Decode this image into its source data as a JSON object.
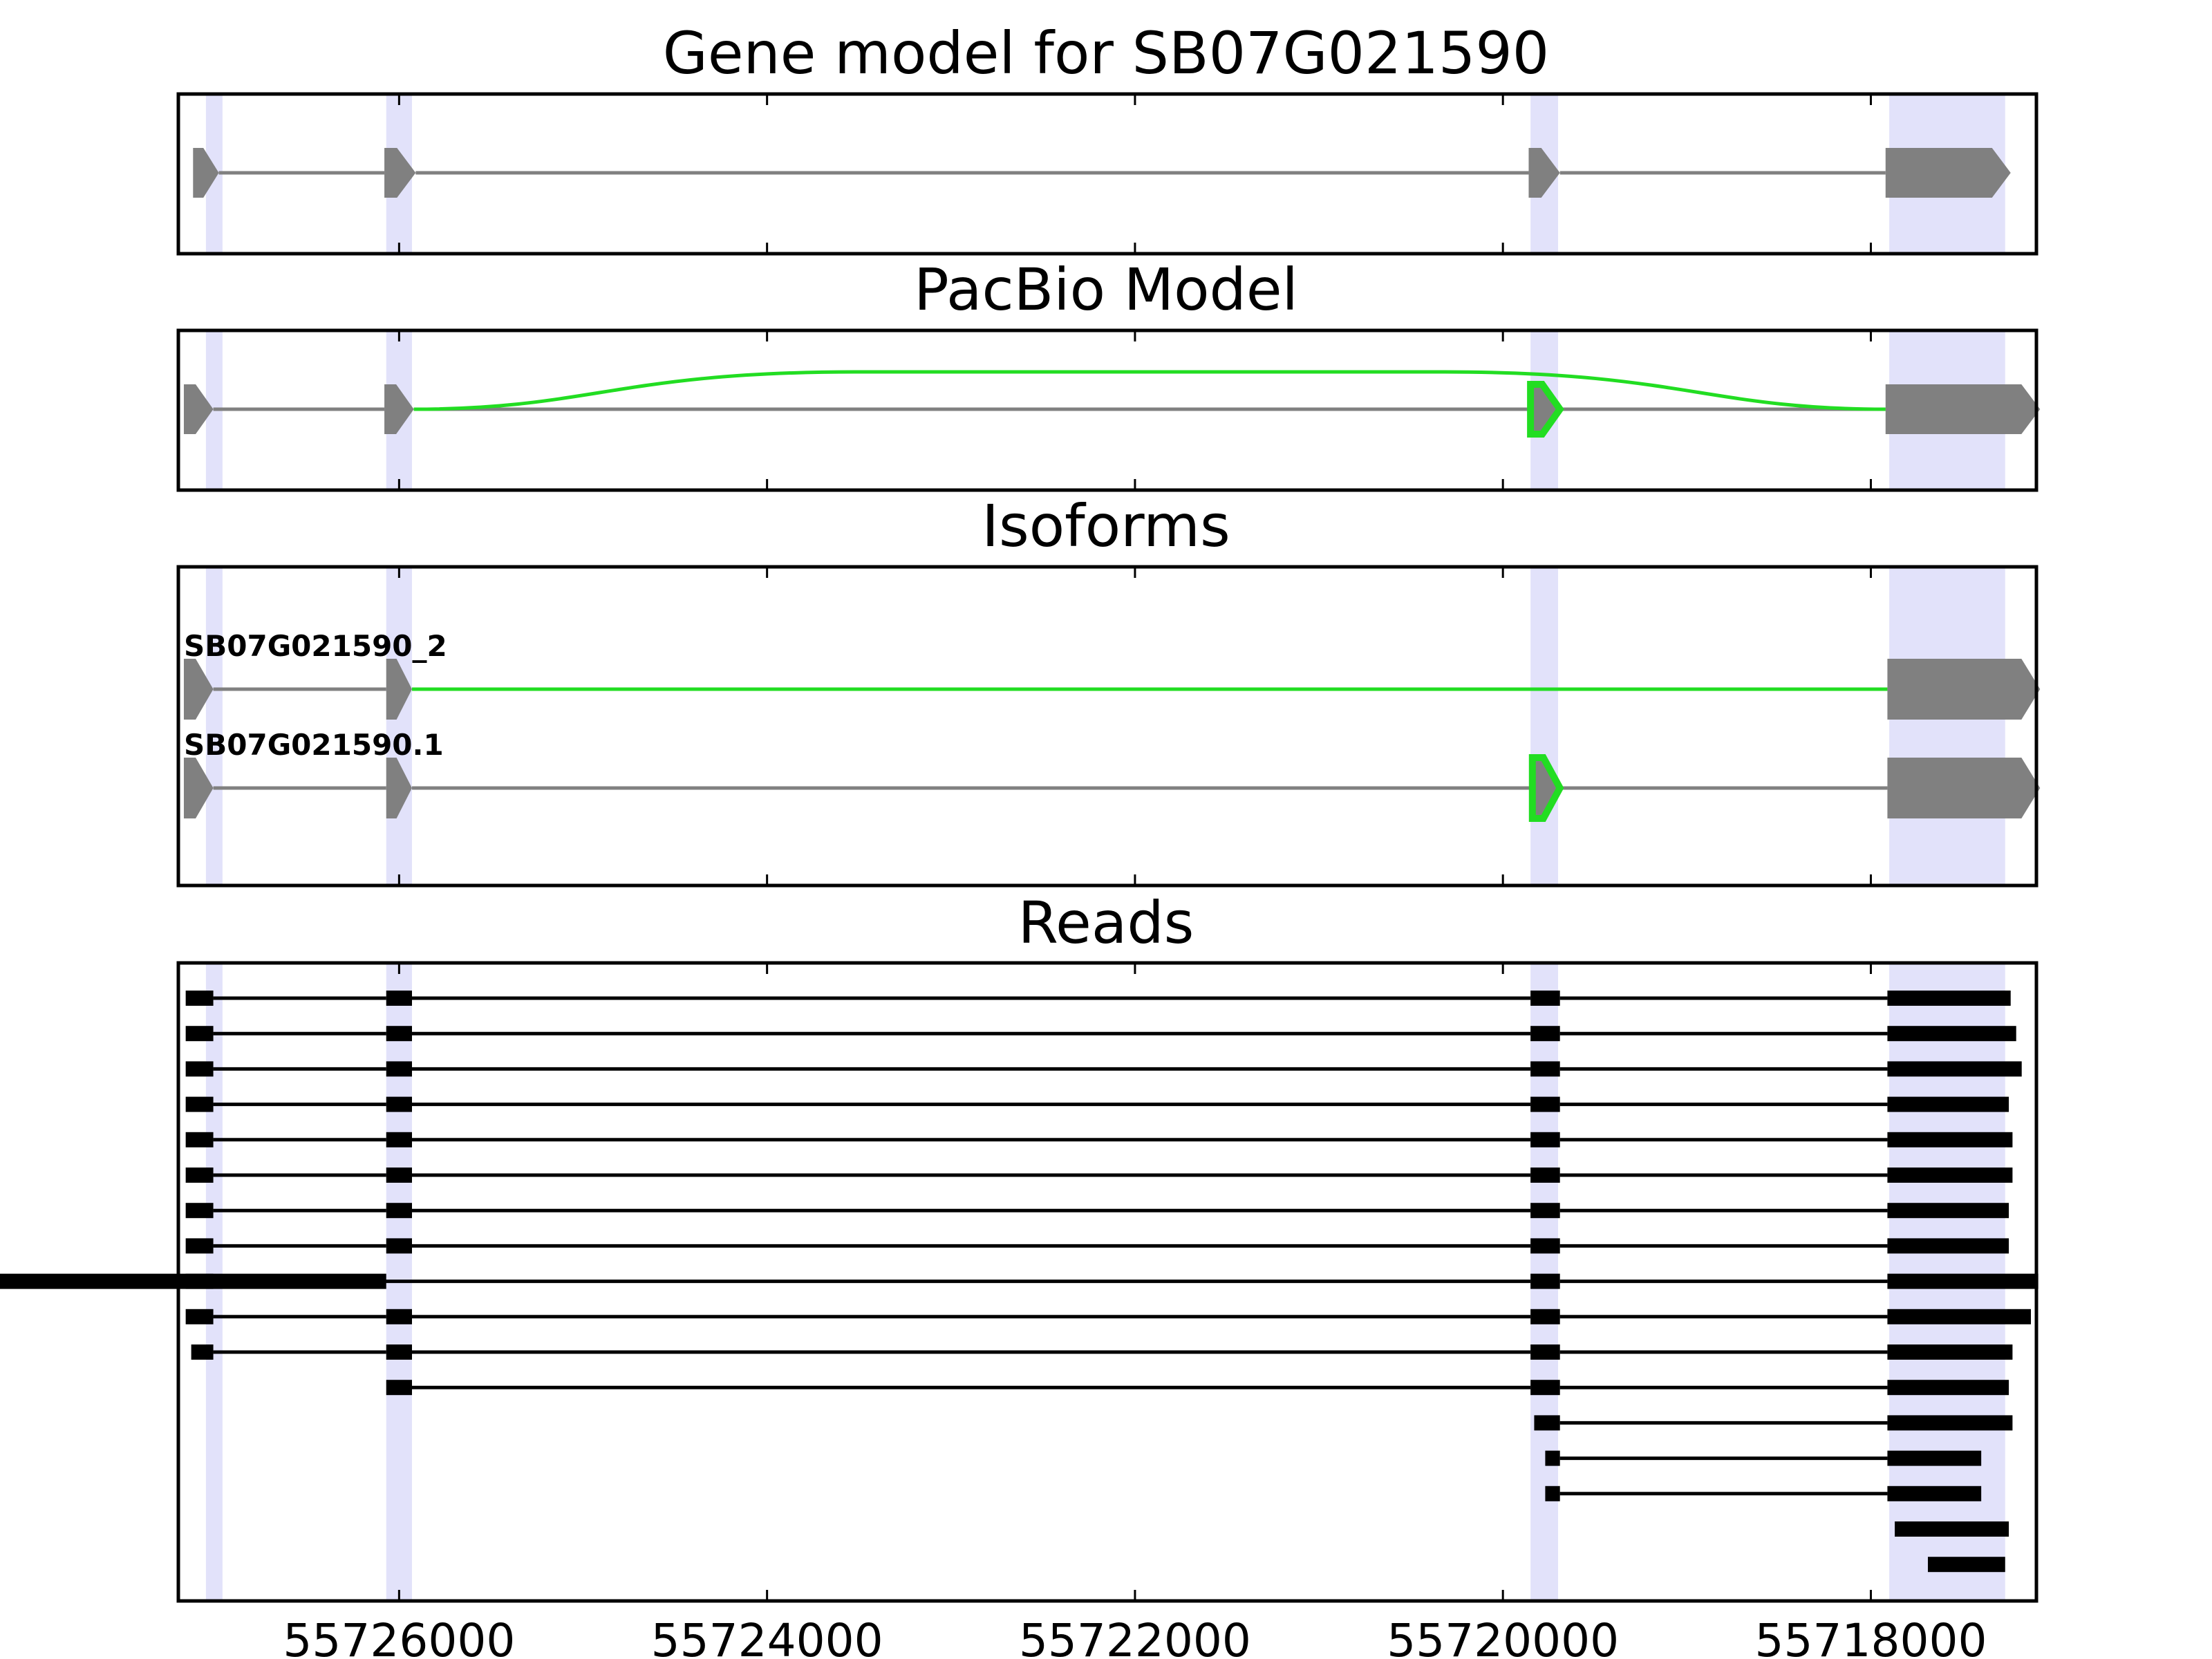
{
  "chart_data": {
    "type": "gene-track",
    "x_reversed": true,
    "xlim": [
      55727200,
      55717100
    ],
    "xticks": [
      55726000,
      55724000,
      55722000,
      55720000,
      55718000
    ],
    "xtick_labels": [
      "55726000",
      "55724000",
      "55722000",
      "55720000",
      "55718000"
    ],
    "exon_highlights": [
      [
        55727050,
        55726960
      ],
      [
        55726070,
        55725930
      ],
      [
        55719850,
        55719700
      ],
      [
        55717900,
        55717270
      ]
    ],
    "colors": {
      "highlight": "#e2e2fa",
      "feature": "#808080",
      "novel": "#22dd22",
      "read": "#000000",
      "frame": "#000000"
    },
    "panels": [
      {
        "title": "Gene model for SB07G021590",
        "rows": [
          {
            "label": "",
            "exons": [
              [
                55727120,
                55726980
              ],
              [
                55726080,
                55725910
              ],
              [
                55719860,
                55719690
              ],
              [
                55717920,
                55717240
              ]
            ],
            "novel_exons": [],
            "novel_junctions": []
          }
        ]
      },
      {
        "title": "PacBio Model",
        "rows": [
          {
            "label": "",
            "exons": [
              [
                55727170,
                55727010
              ],
              [
                55726080,
                55725920
              ],
              [
                55717920,
                55717080
              ]
            ],
            "novel_exons": [
              [
                55719850,
                55719690
              ]
            ],
            "novel_junctions": [
              [
                55725920,
                55717920
              ]
            ]
          }
        ]
      },
      {
        "title": "Isoforms",
        "rows": [
          {
            "label": "SB07G021590_2",
            "exons": [
              [
                55727170,
                55727010
              ],
              [
                55726070,
                55725930
              ],
              [
                55717910,
                55717080
              ]
            ],
            "novel_exons": [],
            "novel_junctions": [
              [
                55725930,
                55717910
              ]
            ]
          },
          {
            "label": "SB07G021590.1",
            "exons": [
              [
                55727170,
                55727010
              ],
              [
                55726070,
                55725930
              ],
              [
                55717910,
                55717080
              ]
            ],
            "novel_exons": [
              [
                55719840,
                55719690
              ]
            ],
            "novel_junctions": []
          }
        ]
      },
      {
        "title": "Reads",
        "rows": [
          {
            "exons": [
              [
                55727160,
                55727010
              ],
              [
                55726070,
                55725930
              ],
              [
                55719850,
                55719690
              ],
              [
                55717910,
                55717240
              ]
            ]
          },
          {
            "exons": [
              [
                55727160,
                55727010
              ],
              [
                55726070,
                55725930
              ],
              [
                55719850,
                55719690
              ],
              [
                55717910,
                55717210
              ]
            ]
          },
          {
            "exons": [
              [
                55727160,
                55727010
              ],
              [
                55726070,
                55725930
              ],
              [
                55719850,
                55719690
              ],
              [
                55717910,
                55717180
              ]
            ]
          },
          {
            "exons": [
              [
                55727160,
                55727010
              ],
              [
                55726070,
                55725930
              ],
              [
                55719850,
                55719690
              ],
              [
                55717910,
                55717250
              ]
            ]
          },
          {
            "exons": [
              [
                55727160,
                55727010
              ],
              [
                55726070,
                55725930
              ],
              [
                55719850,
                55719690
              ],
              [
                55717910,
                55717230
              ]
            ]
          },
          {
            "exons": [
              [
                55727160,
                55727010
              ],
              [
                55726070,
                55725930
              ],
              [
                55719850,
                55719690
              ],
              [
                55717910,
                55717230
              ]
            ]
          },
          {
            "exons": [
              [
                55727160,
                55727010
              ],
              [
                55726070,
                55725930
              ],
              [
                55719850,
                55719690
              ],
              [
                55717910,
                55717250
              ]
            ]
          },
          {
            "exons": [
              [
                55727160,
                55727010
              ],
              [
                55726070,
                55725930
              ],
              [
                55719850,
                55719690
              ],
              [
                55717910,
                55717250
              ]
            ]
          },
          {
            "exons": [
              [
                55727160,
                55727010
              ],
              [
                55726070,
                55925930
              ],
              [
                55719850,
                55719690
              ],
              [
                55717910,
                55717090
              ]
            ]
          },
          {
            "exons": [
              [
                55727160,
                55727010
              ],
              [
                55726070,
                55725930
              ],
              [
                55719850,
                55719690
              ],
              [
                55717910,
                55717130
              ]
            ]
          },
          {
            "exons": [
              [
                55727130,
                55727010
              ],
              [
                55726070,
                55725930
              ],
              [
                55719850,
                55719690
              ],
              [
                55717910,
                55717230
              ]
            ]
          },
          {
            "exons": [
              [
                55726070,
                55725930
              ],
              [
                55719850,
                55719690
              ],
              [
                55717910,
                55717250
              ]
            ]
          },
          {
            "exons": [
              [
                55719830,
                55719690
              ],
              [
                55717910,
                55717230
              ]
            ]
          },
          {
            "exons": [
              [
                55719770,
                55719690
              ],
              [
                55717910,
                55717400
              ]
            ]
          },
          {
            "exons": [
              [
                55719770,
                55719690
              ],
              [
                55717910,
                55717400
              ]
            ]
          },
          {
            "exons": [
              [
                55717870,
                55717250
              ]
            ]
          },
          {
            "exons": [
              [
                55717690,
                55717270
              ]
            ]
          }
        ]
      }
    ]
  }
}
